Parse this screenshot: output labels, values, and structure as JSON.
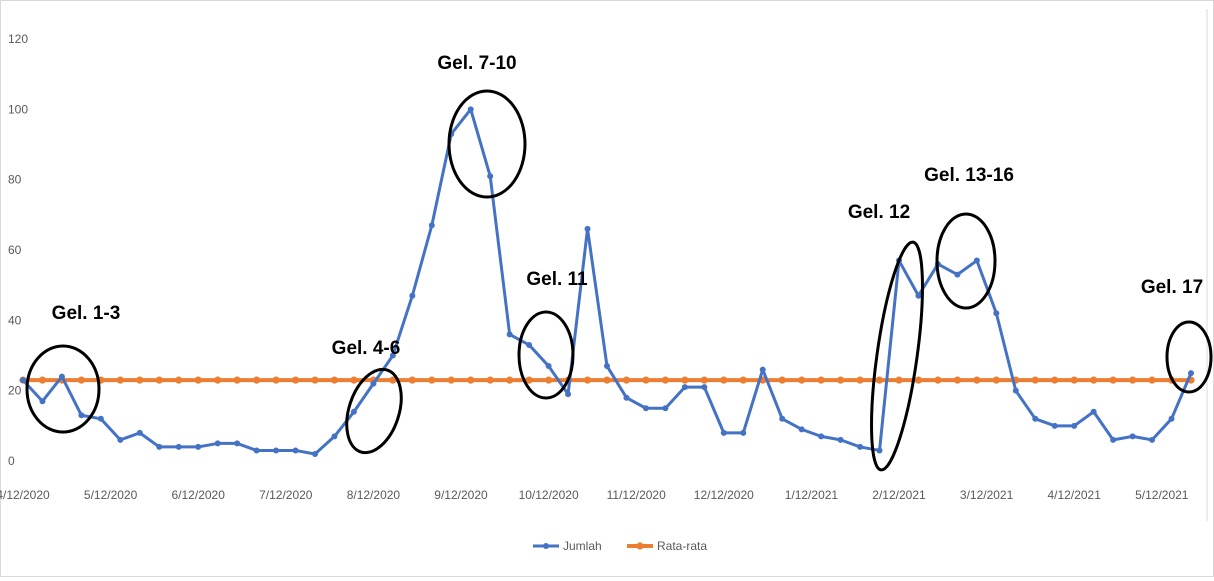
{
  "chart_data": {
    "type": "line",
    "title": "",
    "xlabel": "",
    "ylabel": "",
    "ylim": [
      0,
      120
    ],
    "yticks": [
      "0",
      "20",
      "40",
      "60",
      "80",
      "100",
      "120"
    ],
    "xticks": [
      "4/12/2020",
      "5/12/2020",
      "6/12/2020",
      "7/12/2020",
      "8/12/2020",
      "9/12/2020",
      "10/12/2020",
      "11/12/2020",
      "12/12/2020",
      "1/12/2021",
      "2/12/2021",
      "3/12/2021",
      "4/12/2021",
      "5/12/2021"
    ],
    "grid": false,
    "legend_position": "bottom",
    "series": [
      {
        "name": "Jumlah",
        "color": "#4472C4",
        "values": [
          23,
          17,
          24,
          13,
          12,
          6,
          8,
          4,
          4,
          4,
          5,
          5,
          3,
          3,
          3,
          2,
          7,
          14,
          22,
          30,
          47,
          67,
          93,
          100,
          81,
          36,
          33,
          27,
          19,
          66,
          27,
          18,
          15,
          15,
          21,
          21,
          8,
          8,
          26,
          12,
          9,
          7,
          6,
          4,
          3,
          57,
          47,
          56,
          53,
          57,
          42,
          20,
          12,
          10,
          10,
          14,
          6,
          7,
          6,
          12,
          25
        ]
      },
      {
        "name": "Rata-rata",
        "color": "#ED7D31",
        "values": [
          23,
          23,
          23,
          23,
          23,
          23,
          23,
          23,
          23,
          23,
          23,
          23,
          23,
          23,
          23,
          23,
          23,
          23,
          23,
          23,
          23,
          23,
          23,
          23,
          23,
          23,
          23,
          23,
          23,
          23,
          23,
          23,
          23,
          23,
          23,
          23,
          23,
          23,
          23,
          23,
          23,
          23,
          23,
          23,
          23,
          23,
          23,
          23,
          23,
          23,
          23,
          23,
          23,
          23,
          23,
          23,
          23,
          23,
          23,
          23,
          23
        ]
      }
    ],
    "annotations": [
      {
        "label": "Gel. 1-3"
      },
      {
        "label": "Gel. 4-6"
      },
      {
        "label": "Gel. 7-10"
      },
      {
        "label": "Gel. 11"
      },
      {
        "label": "Gel. 12"
      },
      {
        "label": "Gel. 13-16"
      },
      {
        "label": "Gel. 17"
      }
    ]
  }
}
